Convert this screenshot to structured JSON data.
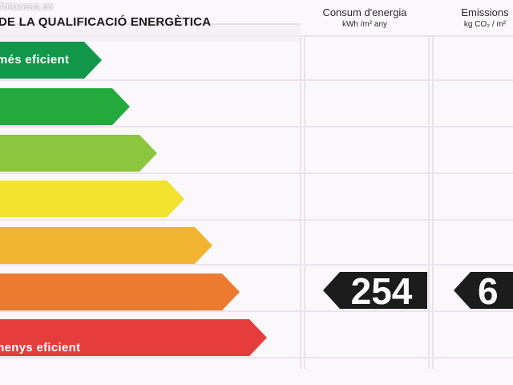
{
  "header": {
    "title": "DE LA QUALIFICACIÓ ENERGÈTICA",
    "watermark": "fotocasa.es"
  },
  "columns": {
    "consumption": {
      "label": "Consum d'energia",
      "unit": "kWh /m² any"
    },
    "emissions": {
      "label": "Emissions",
      "unit": "kg CO₂ / m²"
    }
  },
  "scale": {
    "top_label": "més eficient",
    "bottom_label": "menys eficient",
    "bars": [
      {
        "color": "#12964a"
      },
      {
        "color": "#22aa3c"
      },
      {
        "color": "#8cc63f"
      },
      {
        "color": "#f2e22e"
      },
      {
        "color": "#f0b431"
      },
      {
        "color": "#ec7a2f"
      },
      {
        "color": "#e53c3c"
      }
    ]
  },
  "rating": {
    "consumption_value": "254",
    "emissions_value": "6",
    "indicator_color": "#1c1c1c"
  }
}
